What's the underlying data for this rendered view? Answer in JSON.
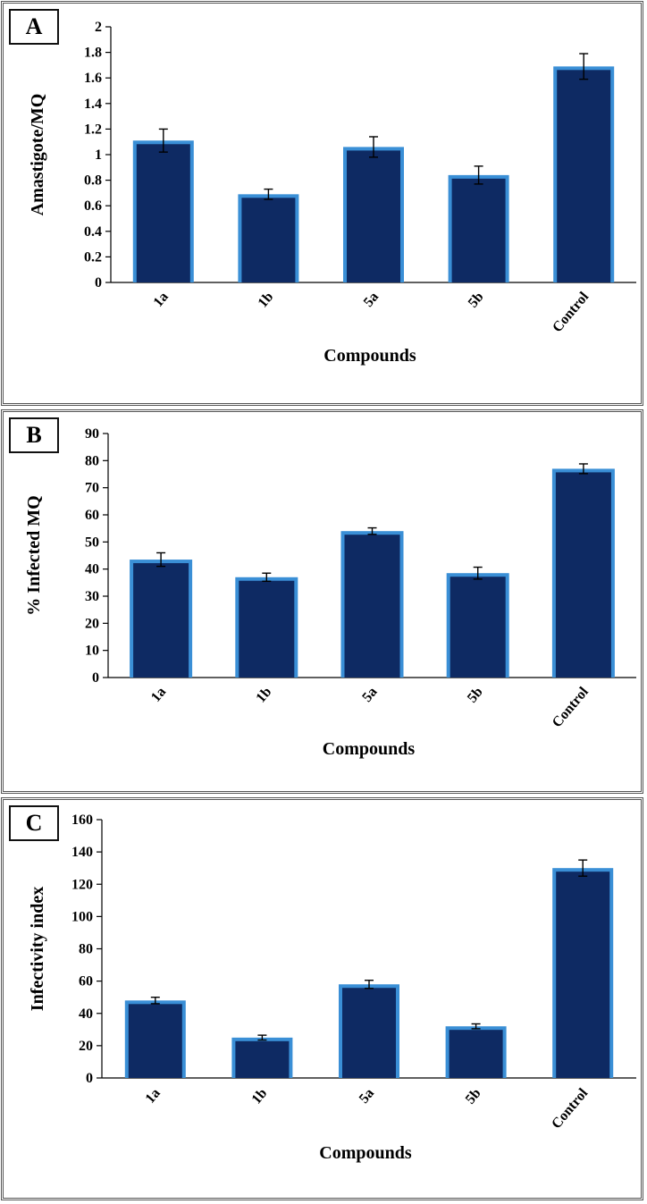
{
  "bar_color": "#0e2a63",
  "bar_edge_color": "#3a8fd6",
  "chart_data": [
    {
      "type": "bar",
      "panel_label": "A",
      "categories": [
        "1a",
        "1b",
        "5a",
        "5b",
        "Control"
      ],
      "values": [
        1.11,
        0.69,
        1.06,
        0.84,
        1.69
      ],
      "errors": [
        0.09,
        0.04,
        0.08,
        0.07,
        0.1
      ],
      "ylim": [
        0,
        2
      ],
      "yticks": [
        "0",
        "0.2",
        "0.4",
        "0.6",
        "0.8",
        "1",
        "1.2",
        "1.4",
        "1.6",
        "1.8",
        "2"
      ],
      "title": "",
      "xlabel": "Compounds",
      "ylabel": "Amastigote/MQ"
    },
    {
      "type": "bar",
      "panel_label": "B",
      "categories": [
        "1a",
        "1b",
        "5a",
        "5b",
        "Control"
      ],
      "values": [
        43.5,
        37,
        54,
        38.5,
        77
      ],
      "errors": [
        2.5,
        1.5,
        1.2,
        2.2,
        1.8
      ],
      "ylim": [
        0,
        90
      ],
      "yticks": [
        "0",
        "10",
        "20",
        "30",
        "40",
        "50",
        "60",
        "70",
        "80",
        "90"
      ],
      "title": "",
      "xlabel": "Compounds",
      "ylabel": "% Infected MQ"
    },
    {
      "type": "bar",
      "panel_label": "C",
      "categories": [
        "1a",
        "1b",
        "5a",
        "5b",
        "Control"
      ],
      "values": [
        48,
        25,
        58,
        32,
        130
      ],
      "errors": [
        2,
        1.5,
        2.5,
        1.5,
        5
      ],
      "ylim": [
        0,
        160
      ],
      "yticks": [
        "0",
        "20",
        "40",
        "60",
        "80",
        "100",
        "120",
        "140",
        "160"
      ],
      "title": "",
      "xlabel": "Compounds",
      "ylabel": "Infectivity index"
    }
  ]
}
